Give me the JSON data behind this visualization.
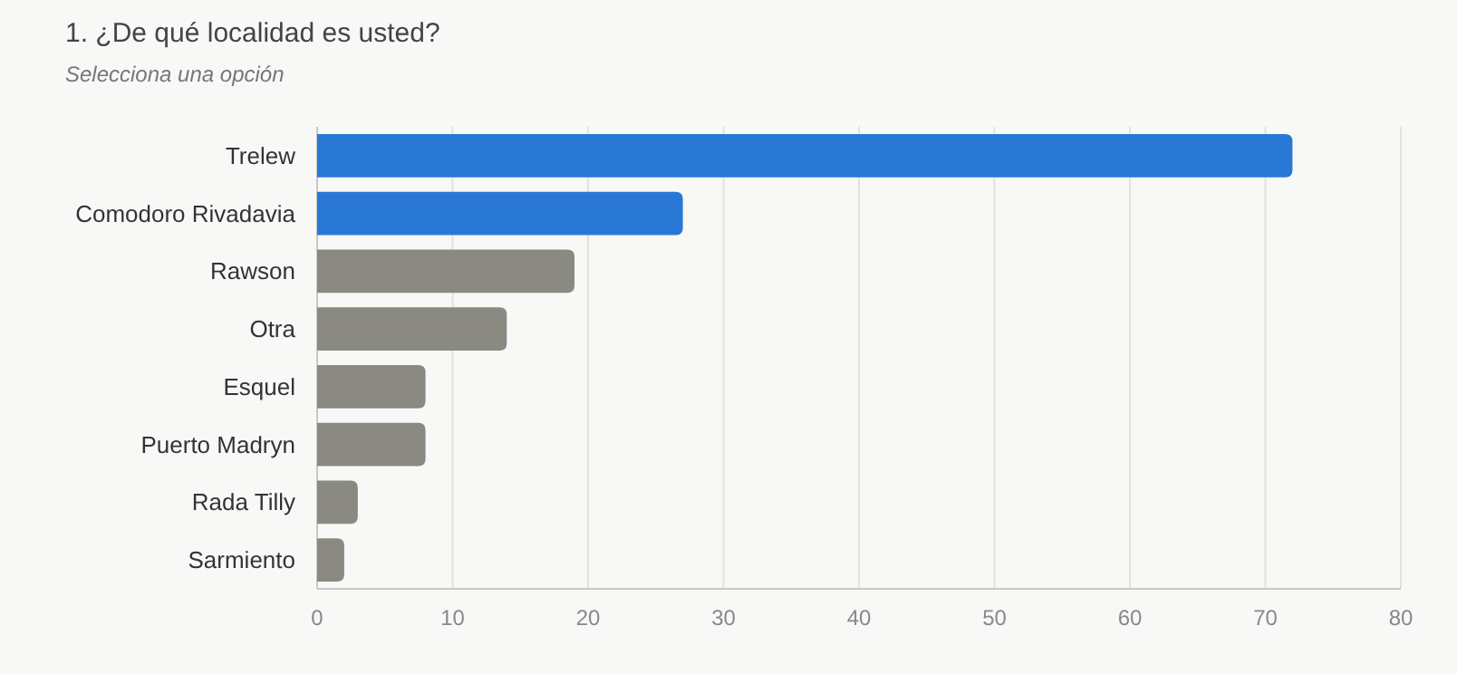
{
  "chart_data": {
    "type": "bar",
    "orientation": "horizontal",
    "title": "1. ¿De qué localidad es usted?",
    "subtitle": "Selecciona una opción",
    "categories": [
      "Trelew",
      "Comodoro Rivadavia",
      "Rawson",
      "Otra",
      "Esquel",
      "Puerto Madryn",
      "Rada Tilly",
      "Sarmiento"
    ],
    "values": [
      72,
      27,
      19,
      14,
      8,
      8,
      3,
      2
    ],
    "colors": [
      "#2a78d6",
      "#2a78d6",
      "#8a8a82",
      "#8a8a82",
      "#8a8a82",
      "#8a8a82",
      "#8a8a82",
      "#8a8a82"
    ],
    "xlim": [
      0,
      80
    ],
    "xticks": [
      0,
      10,
      20,
      30,
      40,
      50,
      60,
      70,
      80
    ],
    "grid": "x"
  }
}
